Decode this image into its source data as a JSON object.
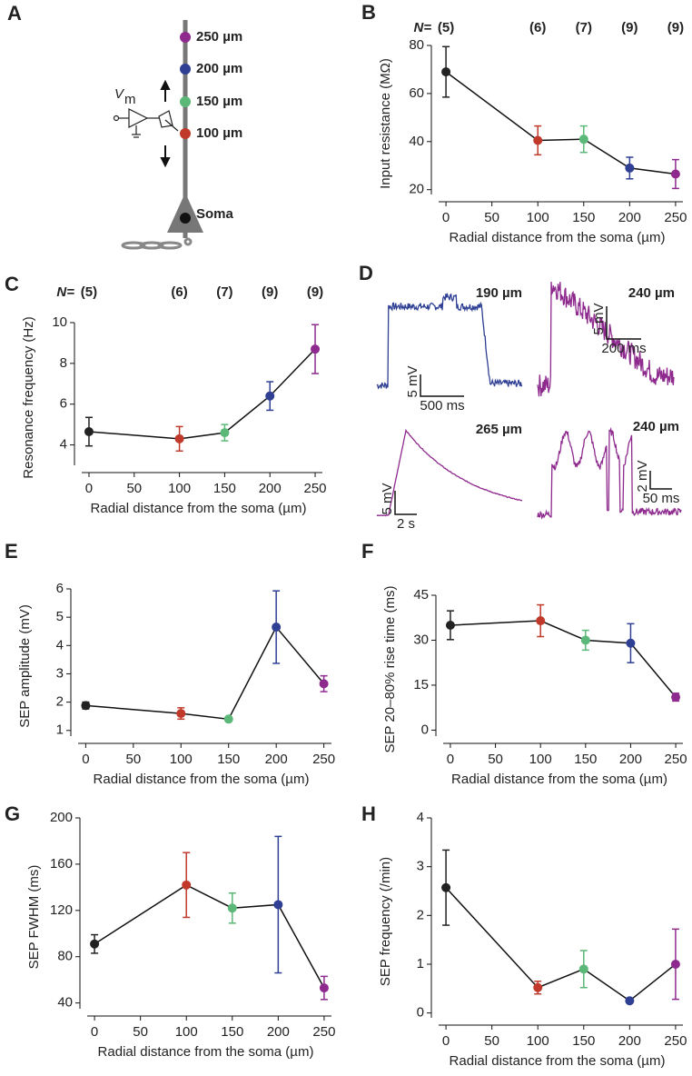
{
  "diagram": {
    "label": "A",
    "sites": [
      {
        "text": "250 µm",
        "color": "#8e2a8e"
      },
      {
        "text": "200 µm",
        "color": "#2e3f94"
      },
      {
        "text": "150 µm",
        "color": "#5bb878"
      },
      {
        "text": "100 µm",
        "color": "#c0392b"
      }
    ],
    "soma": "Soma",
    "vm": "V",
    "vm_sub": "m"
  },
  "traces": {
    "label": "D",
    "items": [
      {
        "distance": "190 µm",
        "scale_y": "5 mV",
        "scale_x": "500 ms",
        "color": "#2e3f94"
      },
      {
        "distance": "240 µm",
        "scale_y": "5 mV",
        "scale_x": "200 ms",
        "color": "#8e2a8e"
      },
      {
        "distance": "265 µm",
        "scale_y": "5 mV",
        "scale_x": "2 s",
        "color": "#8e2a8e"
      },
      {
        "distance": "240 µm",
        "scale_y": "2 mV",
        "scale_x": "50 ms",
        "color": "#8e2a8e"
      }
    ]
  },
  "chart_data": [
    {
      "type": "line",
      "label": "B",
      "ylabel": "Input resistance (MΩ)",
      "xlabel": "Radial distance from the soma (µm)",
      "n_prefix": "N=",
      "n_labels": [
        "(5)",
        "(6)",
        "(7)",
        "(9)",
        "(9)"
      ],
      "x": [
        0,
        100,
        150,
        200,
        250
      ],
      "xlim": [
        -8,
        258
      ],
      "xticks": [
        0,
        50,
        100,
        150,
        200,
        250
      ],
      "ylim": [
        18,
        80
      ],
      "yticks": [
        20,
        40,
        60,
        80
      ],
      "series": [
        {
          "color": "#111",
          "point_colors": [
            "#222",
            "#c0392b",
            "#5bb878",
            "#2e3f94",
            "#8e2a8e"
          ],
          "values": [
            69,
            40.5,
            41,
            29,
            26.5
          ],
          "errors": [
            10.5,
            6,
            5.5,
            4.5,
            6
          ]
        }
      ]
    },
    {
      "type": "line",
      "label": "C",
      "ylabel": "Resonance frequency (Hz)",
      "xlabel": "Radial distance from the soma (µm)",
      "n_prefix": "N=",
      "n_labels": [
        "(5)",
        "(6)",
        "(7)",
        "(9)",
        "(9)"
      ],
      "x": [
        0,
        100,
        150,
        200,
        250
      ],
      "xlim": [
        -8,
        258
      ],
      "xticks": [
        0,
        50,
        100,
        150,
        200,
        250
      ],
      "ylim": [
        3,
        10
      ],
      "yticks": [
        4,
        6,
        8,
        10
      ],
      "series": [
        {
          "color": "#111",
          "point_colors": [
            "#222",
            "#c0392b",
            "#5bb878",
            "#2e3f94",
            "#8e2a8e"
          ],
          "values": [
            4.65,
            4.3,
            4.6,
            6.4,
            8.7
          ],
          "errors": [
            0.7,
            0.6,
            0.4,
            0.7,
            1.2
          ]
        }
      ]
    },
    {
      "type": "line",
      "label": "E",
      "ylabel": "SEP amplitude (mV)",
      "xlabel": "Radial distance from the soma (µm)",
      "x": [
        0,
        100,
        150,
        200,
        250
      ],
      "xlim": [
        -8,
        258
      ],
      "xticks": [
        0,
        50,
        100,
        150,
        200,
        250
      ],
      "ylim": [
        0.8,
        6
      ],
      "yticks": [
        1,
        2,
        3,
        4,
        5,
        6
      ],
      "series": [
        {
          "color": "#111",
          "point_colors": [
            "#222",
            "#c0392b",
            "#5bb878",
            "#2e3f94",
            "#8e2a8e"
          ],
          "values": [
            1.88,
            1.6,
            1.4,
            4.65,
            2.65
          ],
          "errors": [
            0.12,
            0.2,
            0.05,
            1.28,
            0.28
          ]
        }
      ]
    },
    {
      "type": "line",
      "label": "F",
      "ylabel": "SEP 20–80% rise time (ms)",
      "xlabel": "Radial distance from the soma (µm)",
      "x": [
        0,
        100,
        150,
        200,
        250
      ],
      "xlim": [
        -8,
        258
      ],
      "xticks": [
        0,
        50,
        100,
        150,
        200,
        250
      ],
      "ylim": [
        -2,
        45
      ],
      "yticks": [
        0,
        15,
        30,
        45
      ],
      "series": [
        {
          "color": "#111",
          "point_colors": [
            "#222",
            "#c0392b",
            "#5bb878",
            "#2e3f94",
            "#8e2a8e"
          ],
          "values": [
            35,
            36.5,
            30,
            29,
            11
          ],
          "errors": [
            4.8,
            5.3,
            3.3,
            6.5,
            1.3
          ]
        }
      ]
    },
    {
      "type": "line",
      "label": "G",
      "ylabel": "SEP FWHM (ms)",
      "xlabel": "Radial distance from the soma (µm)",
      "x": [
        0,
        100,
        150,
        200,
        250
      ],
      "xlim": [
        -8,
        258
      ],
      "xticks": [
        0,
        50,
        100,
        150,
        200,
        250
      ],
      "ylim": [
        35,
        200
      ],
      "yticks": [
        40,
        80,
        120,
        160,
        200
      ],
      "series": [
        {
          "color": "#111",
          "point_colors": [
            "#222",
            "#c0392b",
            "#5bb878",
            "#2e3f94",
            "#8e2a8e"
          ],
          "values": [
            91,
            142,
            122,
            125,
            53
          ],
          "errors": [
            8,
            28,
            13,
            59,
            10
          ]
        }
      ]
    },
    {
      "type": "line",
      "label": "H",
      "ylabel": "SEP frequency (/min)",
      "xlabel": "Radial distance from the soma (µm)",
      "x": [
        0,
        100,
        150,
        200,
        250
      ],
      "xlim": [
        -8,
        258
      ],
      "xticks": [
        0,
        50,
        100,
        150,
        200,
        250
      ],
      "ylim": [
        -0.1,
        4
      ],
      "yticks": [
        0,
        1,
        2,
        3,
        4
      ],
      "series": [
        {
          "color": "#111",
          "point_colors": [
            "#222",
            "#c0392b",
            "#5bb878",
            "#2e3f94",
            "#8e2a8e"
          ],
          "values": [
            2.57,
            0.52,
            0.9,
            0.25,
            1.0
          ],
          "errors": [
            0.77,
            0.13,
            0.38,
            0.04,
            0.72
          ]
        }
      ]
    }
  ]
}
